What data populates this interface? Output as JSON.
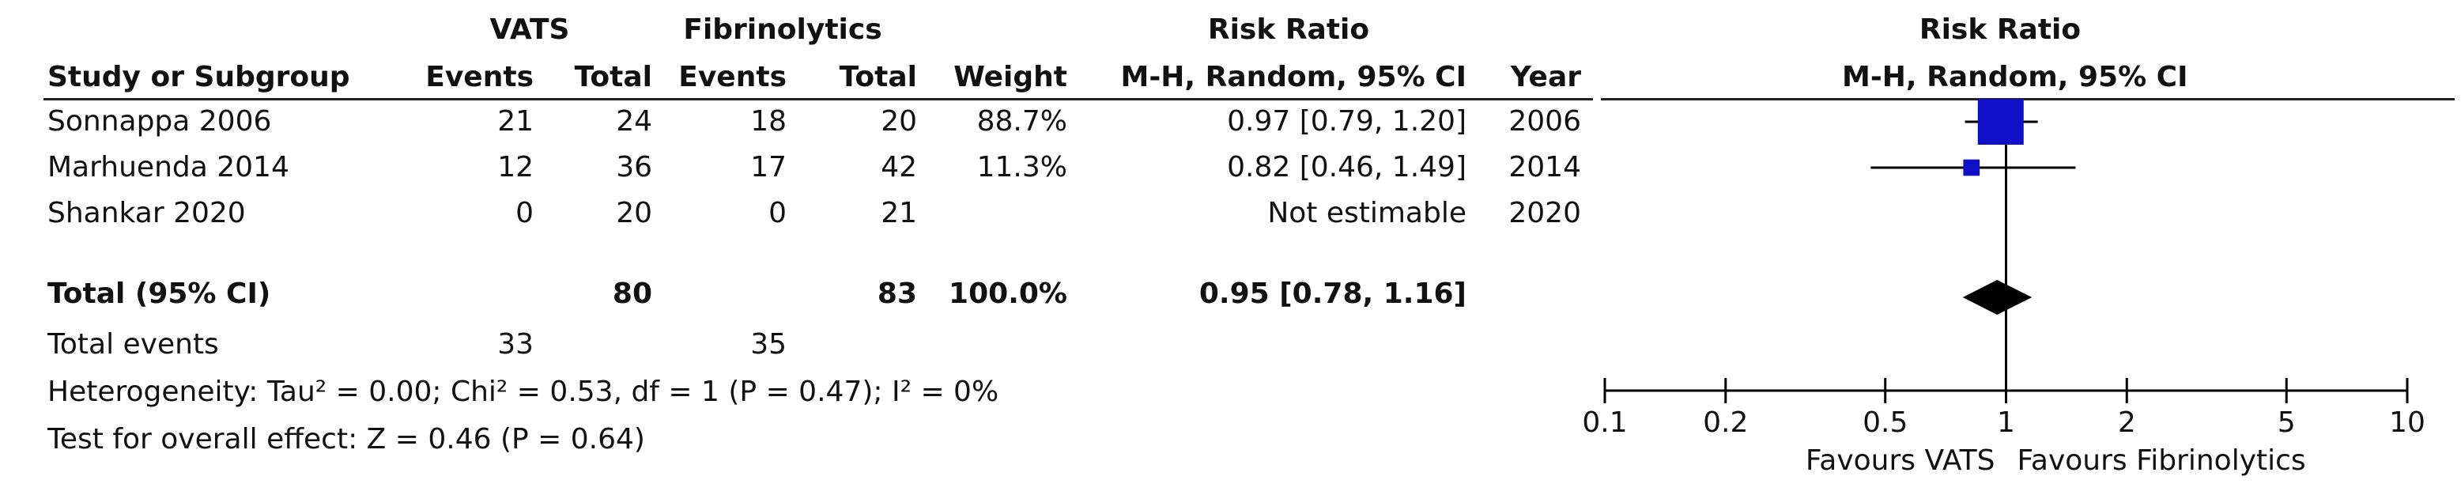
{
  "headers": {
    "group1": "VATS",
    "group2": "Fibrinolytics",
    "rr_title": "Risk Ratio",
    "study": "Study or Subgroup",
    "events1": "Events",
    "total1": "Total",
    "events2": "Events",
    "total2": "Total",
    "weight": "Weight",
    "rr_method": "M-H, Random, 95% CI",
    "year": "Year",
    "plot_title": "Risk Ratio",
    "plot_method": "M-H, Random, 95% CI"
  },
  "studies": [
    {
      "name": "Sonnappa 2006",
      "e1": "21",
      "t1": "24",
      "e2": "18",
      "t2": "20",
      "weight": "88.7%",
      "ci": "0.97 [0.79, 1.20]",
      "year": "2006"
    },
    {
      "name": "Marhuenda 2014",
      "e1": "12",
      "t1": "36",
      "e2": "17",
      "t2": "42",
      "weight": "11.3%",
      "ci": "0.82 [0.46, 1.49]",
      "year": "2014"
    },
    {
      "name": "Shankar 2020",
      "e1": "0",
      "t1": "20",
      "e2": "0",
      "t2": "21",
      "weight": "",
      "ci": "Not estimable",
      "year": "2020"
    }
  ],
  "total": {
    "label": "Total (95% CI)",
    "t1": "80",
    "t2": "83",
    "weight": "100.0%",
    "ci": "0.95 [0.78, 1.16]"
  },
  "events_row": {
    "label": "Total events",
    "e1": "33",
    "e2": "35"
  },
  "heterogeneity": "Heterogeneity: Tau² = 0.00; Chi² = 0.53, df = 1 (P = 0.47); I² = 0%",
  "overall_effect": "Test for overall effect: Z = 0.46 (P = 0.64)",
  "axis_labels": {
    "left": "Favours VATS",
    "right": "Favours Fibrinolytics"
  },
  "chart_data": {
    "type": "forest",
    "scale": "log",
    "xlim": [
      0.1,
      10
    ],
    "ticks": [
      0.1,
      0.2,
      0.5,
      1,
      2,
      5,
      10
    ],
    "tick_labels": [
      "0.1",
      "0.2",
      "0.5",
      "1",
      "2",
      "5",
      "10"
    ],
    "null_line": 1,
    "studies": [
      {
        "name": "Sonnappa 2006",
        "rr": 0.97,
        "lo": 0.79,
        "hi": 1.2,
        "weight": 88.7
      },
      {
        "name": "Marhuenda 2014",
        "rr": 0.82,
        "lo": 0.46,
        "hi": 1.49,
        "weight": 11.3
      }
    ],
    "pooled": {
      "rr": 0.95,
      "lo": 0.78,
      "hi": 1.16
    },
    "colors": {
      "square": "#1010c8",
      "diamond": "#000000"
    }
  }
}
